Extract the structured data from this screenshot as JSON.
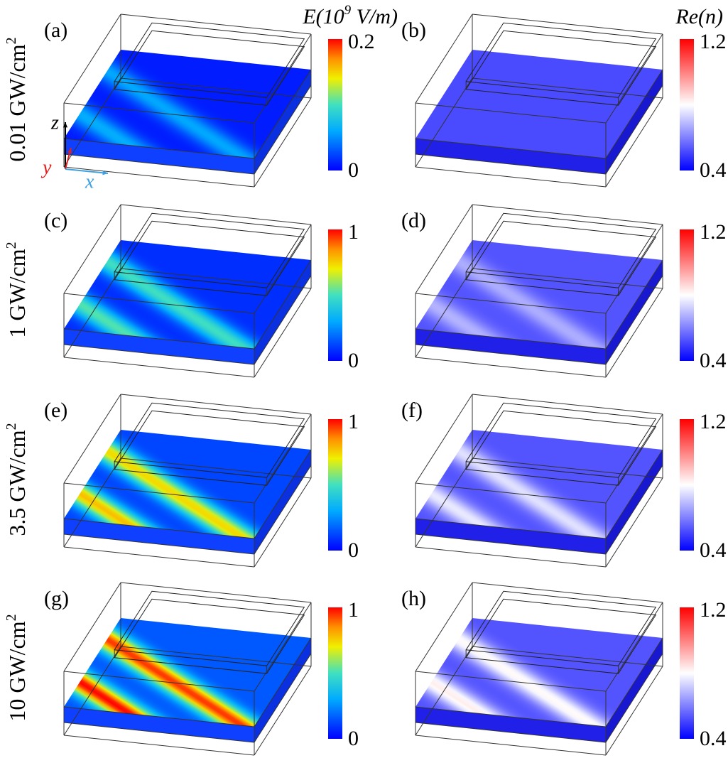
{
  "colorbar_titles": {
    "left": {
      "main": "E(10",
      "sup": "9",
      "rest": " V/m)"
    },
    "right": "Re(n)"
  },
  "rows": [
    {
      "label": "0.01 GW/cm",
      "sup": "2"
    },
    {
      "label": "1 GW/cm",
      "sup": "2"
    },
    {
      "label": "3.5 GW/cm",
      "sup": "2"
    },
    {
      "label": "10 GW/cm",
      "sup": "2"
    }
  ],
  "panels": [
    {
      "label": "(a)",
      "max": "0.2",
      "min": "0"
    },
    {
      "label": "(b)",
      "max": "1.2",
      "min": "0.4"
    },
    {
      "label": "(c)",
      "max": "1",
      "min": "0"
    },
    {
      "label": "(d)",
      "max": "1.2",
      "min": "0.4"
    },
    {
      "label": "(e)",
      "max": "1",
      "min": "0"
    },
    {
      "label": "(f)",
      "max": "1.2",
      "min": "0.4"
    },
    {
      "label": "(g)",
      "max": "1",
      "min": "0"
    },
    {
      "label": "(h)",
      "max": "1.2",
      "min": "0.4"
    }
  ],
  "axes": {
    "z": "z",
    "y": "y",
    "x": "x"
  }
}
